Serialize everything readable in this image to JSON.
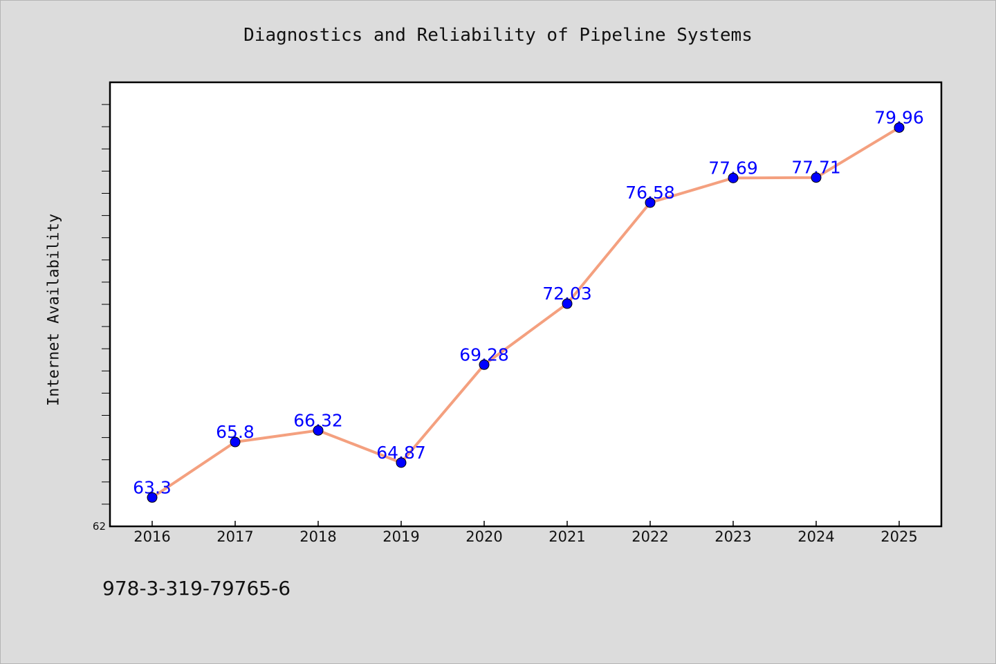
{
  "chart_data": {
    "type": "line",
    "title": "Diagnostics and Reliability of Pipeline Systems",
    "xlabel": "",
    "ylabel": "Internet Availability",
    "categories": [
      "2016",
      "2017",
      "2018",
      "2019",
      "2020",
      "2021",
      "2022",
      "2023",
      "2024",
      "2025"
    ],
    "series": [
      {
        "values": [
          63.3,
          65.8,
          66.32,
          64.87,
          69.28,
          72.03,
          76.58,
          77.69,
          77.71,
          79.96
        ]
      }
    ],
    "data_labels": [
      "63.3",
      "65.8",
      "66.32",
      "64.87",
      "69.28",
      "72.03",
      "76.58",
      "77.69",
      "77.71",
      "79.96"
    ],
    "ylim": [
      62,
      82
    ],
    "y_tick_labels": [
      "62"
    ],
    "grid": false,
    "line_color": "#f4a07f",
    "marker_color": "#0000ff"
  },
  "footer_text": "978-3-319-79765-6"
}
